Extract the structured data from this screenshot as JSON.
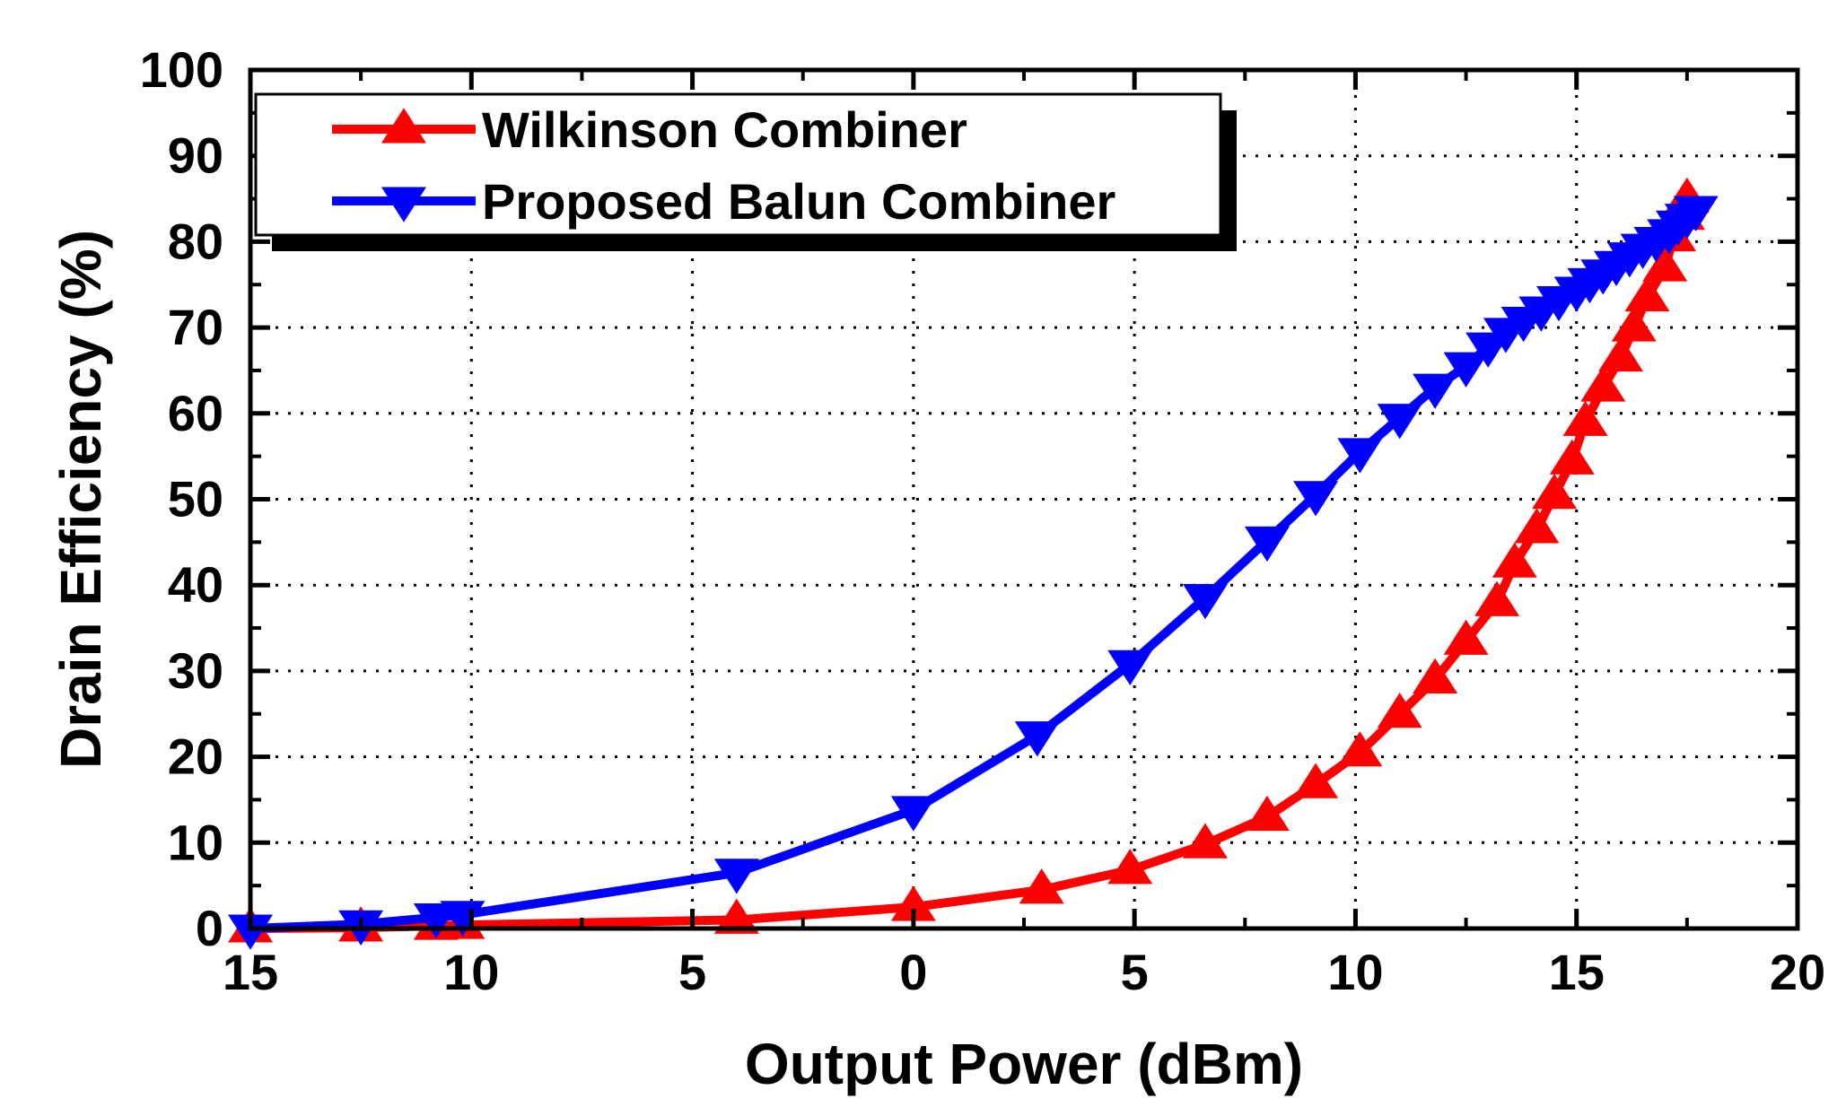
{
  "chart_data": {
    "type": "line",
    "title": "",
    "xlabel": "Output Power (dBm)",
    "ylabel": "Drain Efficiency (%)",
    "xlim": [
      -15,
      20
    ],
    "ylim": [
      0,
      100
    ],
    "x_ticks": [
      -15,
      -10,
      -5,
      0,
      5,
      10,
      15,
      20
    ],
    "x_tick_labels": [
      "15",
      "10",
      "5",
      "0",
      "5",
      "10",
      "15",
      "20"
    ],
    "y_ticks": [
      0,
      10,
      20,
      30,
      40,
      50,
      60,
      70,
      80,
      90,
      100
    ],
    "y_tick_labels": [
      "0",
      "10",
      "20",
      "30",
      "40",
      "50",
      "60",
      "70",
      "80",
      "90",
      "100"
    ],
    "grid": true,
    "legend_position": "top-left",
    "series": [
      {
        "name": "Wilkinson Combiner",
        "color": "#ff0000",
        "marker": "triangle-up",
        "x": [
          -15,
          -12.5,
          -10.8,
          -10.2,
          -4,
          0,
          2.9,
          4.9,
          6.6,
          8,
          9.1,
          10.1,
          11,
          11.8,
          12.5,
          13.2,
          13.6,
          14.1,
          14.5,
          14.9,
          15.2,
          15.6,
          16,
          16.3,
          16.6,
          17,
          17.2,
          17.4,
          17.5
        ],
        "y": [
          0,
          0.1,
          0.3,
          0.4,
          1,
          2.5,
          4.5,
          6.8,
          9.8,
          13,
          16.8,
          20.5,
          25,
          29,
          33.5,
          38,
          42.5,
          46.5,
          50.5,
          54.5,
          59,
          63,
          66.5,
          70,
          73.5,
          77,
          80.5,
          83,
          85
        ]
      },
      {
        "name": "Proposed Balun Combiner",
        "color": "#0000ff",
        "marker": "triangle-down",
        "x": [
          -15,
          -12.5,
          -10.8,
          -10.2,
          -4,
          0,
          2.8,
          4.9,
          6.6,
          8,
          9.1,
          10.1,
          11,
          11.8,
          12.5,
          13,
          13.4,
          13.8,
          14.2,
          14.6,
          15,
          15.3,
          15.6,
          15.9,
          16.2,
          16.5,
          16.8,
          17.1,
          17.3,
          17.5,
          17.7
        ],
        "y": [
          0,
          0.5,
          1.3,
          1.6,
          6.5,
          13.8,
          22.5,
          30.8,
          38.5,
          45.2,
          50.5,
          55.5,
          59.5,
          63,
          65.5,
          67.8,
          69.5,
          70.8,
          72,
          73.2,
          74.3,
          75.3,
          76.3,
          77.3,
          78.3,
          79.3,
          80.1,
          81,
          82,
          82.8,
          83.7
        ]
      }
    ]
  }
}
